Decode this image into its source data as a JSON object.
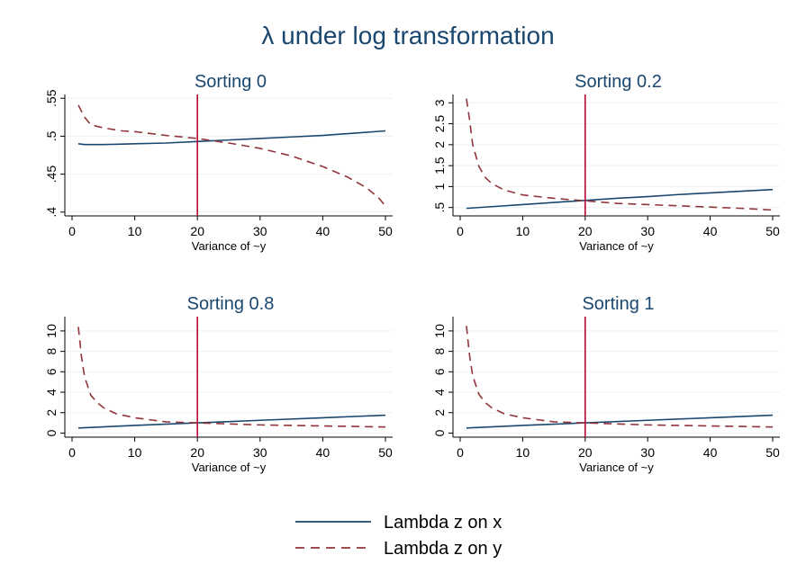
{
  "figure": {
    "title": "λ under log transformation"
  },
  "legend": {
    "placement": "bottom",
    "items": [
      {
        "label": "Lambda z on x",
        "color": "#1a476f",
        "dash": "solid"
      },
      {
        "label": "Lambda z on y",
        "color": "#90353b",
        "dash": "dashed"
      }
    ]
  },
  "colors": {
    "series_x": "#1a476f",
    "series_y": "#90353b",
    "refline": "#c10534",
    "grid": "#eaf2f3"
  },
  "chart_data": [
    {
      "type": "line",
      "title": "Sorting 0",
      "xlabel": "Variance of ~y",
      "ylabel": "",
      "xlim": [
        0,
        50
      ],
      "ylim": [
        0.395,
        0.555
      ],
      "xticks": [
        "0",
        "10",
        "20",
        "30",
        "40",
        "50"
      ],
      "yticks": [
        ".4",
        ".45",
        ".5",
        ".55"
      ],
      "ytick_values": [
        0.4,
        0.45,
        0.5,
        0.55
      ],
      "refline_x": 20,
      "grid": true,
      "series": [
        {
          "name": "Lambda z on x",
          "x": [
            1,
            2,
            5,
            10,
            15,
            20,
            25,
            30,
            35,
            40,
            45,
            50
          ],
          "y": [
            0.49,
            0.489,
            0.489,
            0.49,
            0.491,
            0.493,
            0.495,
            0.497,
            0.499,
            0.501,
            0.504,
            0.507
          ]
        },
        {
          "name": "Lambda z on y",
          "x": [
            1,
            2,
            3,
            5,
            8,
            10,
            15,
            20,
            25,
            30,
            35,
            40,
            44,
            47,
            49,
            50
          ],
          "y": [
            0.541,
            0.525,
            0.515,
            0.511,
            0.507,
            0.506,
            0.501,
            0.497,
            0.491,
            0.484,
            0.474,
            0.46,
            0.446,
            0.432,
            0.418,
            0.408
          ]
        }
      ]
    },
    {
      "type": "line",
      "title": "Sorting 0.2",
      "xlabel": "Variance of ~y",
      "ylabel": "",
      "xlim": [
        0,
        50
      ],
      "ylim": [
        0.3,
        3.2
      ],
      "xticks": [
        "0",
        "10",
        "20",
        "30",
        "40",
        "50"
      ],
      "yticks": [
        ".5",
        "1",
        "1.5",
        "2",
        "2.5",
        "3"
      ],
      "ytick_values": [
        0.5,
        1,
        1.5,
        2,
        2.5,
        3
      ],
      "refline_x": 20,
      "grid": true,
      "series": [
        {
          "name": "Lambda z on x",
          "x": [
            1,
            5,
            10,
            15,
            20,
            25,
            30,
            35,
            40,
            45,
            50
          ],
          "y": [
            0.48,
            0.52,
            0.57,
            0.62,
            0.67,
            0.72,
            0.76,
            0.81,
            0.85,
            0.89,
            0.93
          ]
        },
        {
          "name": "Lambda z on y",
          "x": [
            1,
            1.5,
            2,
            3,
            4,
            5,
            7,
            10,
            15,
            20,
            25,
            30,
            35,
            40,
            45,
            50
          ],
          "y": [
            3.1,
            2.6,
            2.0,
            1.48,
            1.22,
            1.08,
            0.92,
            0.8,
            0.72,
            0.66,
            0.6,
            0.57,
            0.54,
            0.51,
            0.48,
            0.44
          ]
        }
      ]
    },
    {
      "type": "line",
      "title": "Sorting 0.8",
      "xlabel": "Variance of ~y",
      "ylabel": "",
      "xlim": [
        0,
        50
      ],
      "ylim": [
        -0.4,
        11.4
      ],
      "xticks": [
        "0",
        "10",
        "20",
        "30",
        "40",
        "50"
      ],
      "yticks": [
        "0",
        "2",
        "4",
        "6",
        "8",
        "10"
      ],
      "ytick_values": [
        0,
        2,
        4,
        6,
        8,
        10
      ],
      "refline_x": 20,
      "grid": true,
      "series": [
        {
          "name": "Lambda z on x",
          "x": [
            1,
            10,
            20,
            30,
            40,
            50
          ],
          "y": [
            0.5,
            0.75,
            1.0,
            1.25,
            1.5,
            1.75
          ]
        },
        {
          "name": "Lambda z on y",
          "x": [
            1,
            1.5,
            2,
            3,
            4,
            5,
            7,
            10,
            15,
            20,
            25,
            30,
            35,
            40,
            45,
            50
          ],
          "y": [
            10.4,
            7.5,
            5.5,
            3.7,
            3.0,
            2.5,
            1.9,
            1.5,
            1.1,
            1.0,
            0.9,
            0.8,
            0.75,
            0.7,
            0.65,
            0.6
          ]
        }
      ]
    },
    {
      "type": "line",
      "title": "Sorting 1",
      "xlabel": "Variance of ~y",
      "ylabel": "",
      "xlim": [
        0,
        50
      ],
      "ylim": [
        -0.4,
        11.4
      ],
      "xticks": [
        "0",
        "10",
        "20",
        "30",
        "40",
        "50"
      ],
      "yticks": [
        "0",
        "2",
        "4",
        "6",
        "8",
        "10"
      ],
      "ytick_values": [
        0,
        2,
        4,
        6,
        8,
        10
      ],
      "refline_x": 20,
      "grid": true,
      "series": [
        {
          "name": "Lambda z on x",
          "x": [
            1,
            10,
            20,
            30,
            40,
            50
          ],
          "y": [
            0.5,
            0.75,
            1.0,
            1.25,
            1.5,
            1.75
          ]
        },
        {
          "name": "Lambda z on y",
          "x": [
            1,
            1.5,
            2,
            3,
            4,
            5,
            7,
            10,
            15,
            20,
            25,
            30,
            35,
            40,
            45,
            50
          ],
          "y": [
            10.5,
            7.6,
            5.6,
            3.8,
            3.0,
            2.5,
            1.9,
            1.5,
            1.1,
            1.0,
            0.9,
            0.8,
            0.75,
            0.7,
            0.65,
            0.6
          ]
        }
      ]
    }
  ]
}
